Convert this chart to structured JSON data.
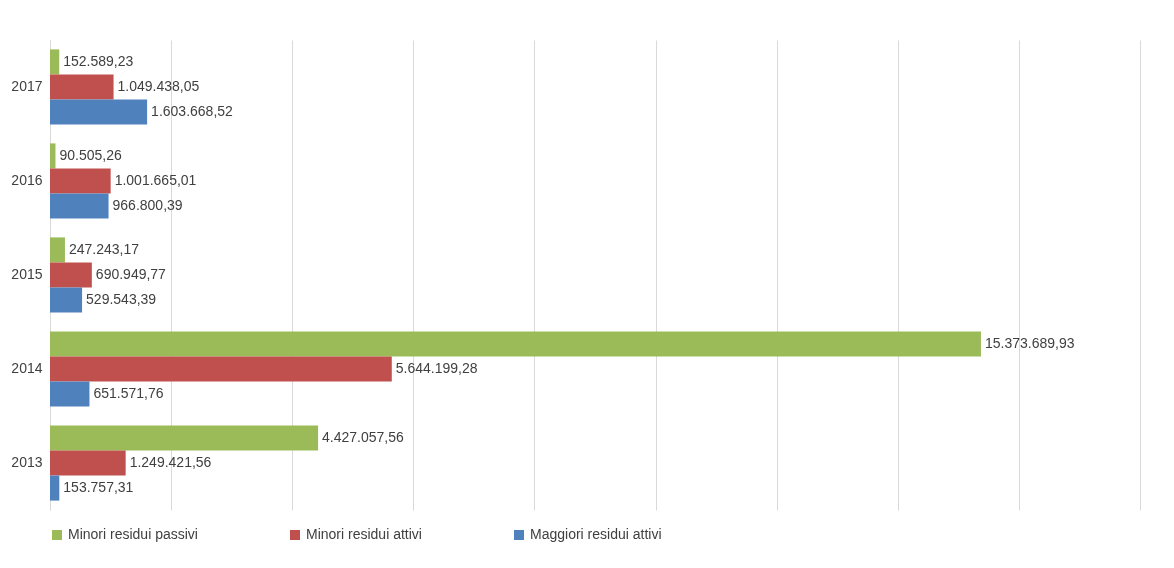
{
  "chart_data": {
    "type": "bar",
    "orientation": "horizontal",
    "categories": [
      "2017",
      "2016",
      "2015",
      "2014",
      "2013"
    ],
    "series": [
      {
        "name": "Minori residui passivi",
        "color": "#9bbb59",
        "values": [
          152589.23,
          90505.26,
          247243.17,
          15373689.93,
          4427057.56
        ],
        "value_labels": [
          "152.589,23",
          "90.505,26",
          "247.243,17",
          "15.373.689,93",
          "4.427.057,56"
        ]
      },
      {
        "name": "Minori residui attivi",
        "color": "#c0504d",
        "values": [
          1049438.05,
          1001665.01,
          690949.77,
          5644199.28,
          1249421.56
        ],
        "value_labels": [
          "1.049.438,05",
          "1.001.665,01",
          "690.949,77",
          "5.644.199,28",
          "1.249.421,56"
        ]
      },
      {
        "name": "Maggiori residui attivi",
        "color": "#4f81bd",
        "values": [
          1603668.52,
          966800.39,
          529543.39,
          651571.76,
          153757.31
        ],
        "value_labels": [
          "1.603.668,52",
          "966.800,39",
          "529.543,39",
          "651.571,76",
          "153.757,31"
        ]
      }
    ],
    "xlim": [
      0,
      18000000
    ],
    "xticks": [
      {
        "value": 0,
        "label": null
      },
      {
        "value": 2000000,
        "label": null
      },
      {
        "value": 4000000,
        "label": null
      },
      {
        "value": 6000000,
        "label": null
      },
      {
        "value": 8000000,
        "label": null
      },
      {
        "value": 10000000,
        "label": null
      },
      {
        "value": 12000000,
        "label": null
      },
      {
        "value": 14000000,
        "label": null
      },
      {
        "value": 16000000,
        "label": null
      },
      {
        "value": 18000000,
        "label": null
      }
    ],
    "tick_labels": "y",
    "grid": "x",
    "legend": "bottom"
  }
}
